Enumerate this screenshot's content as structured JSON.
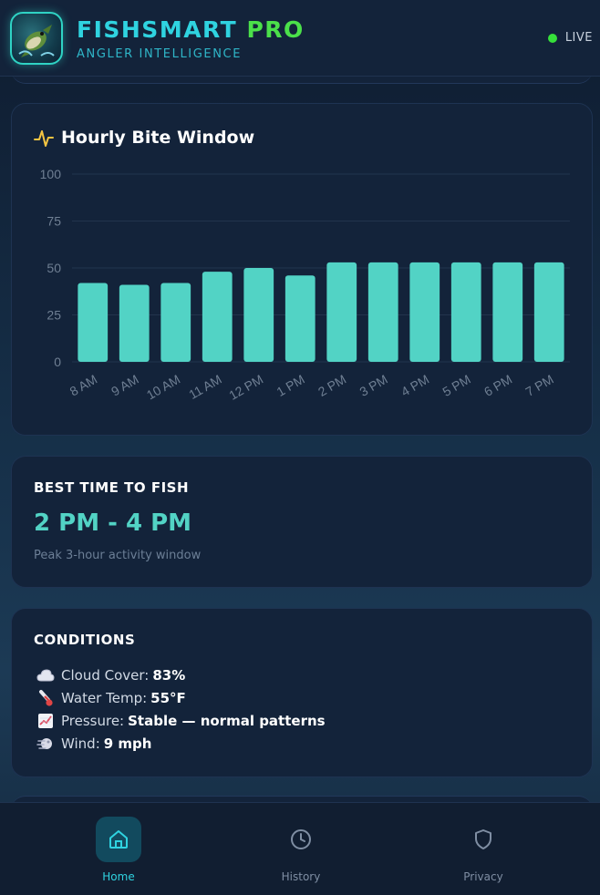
{
  "header": {
    "title_part1": "FISHSMART",
    "title_part2": "PRO",
    "subtitle": "ANGLER INTELLIGENCE",
    "status_label": "LIVE"
  },
  "chart_section": {
    "title": "Hourly Bite Window"
  },
  "chart_data": {
    "type": "bar",
    "title": "Hourly Bite Window",
    "categories": [
      "8 AM",
      "9 AM",
      "10 AM",
      "11 AM",
      "12 PM",
      "1 PM",
      "2 PM",
      "3 PM",
      "4 PM",
      "5 PM",
      "6 PM",
      "7 PM"
    ],
    "values": [
      42,
      41,
      42,
      48,
      50,
      46,
      53,
      53,
      53,
      53,
      53,
      53
    ],
    "ylim": [
      0,
      100
    ],
    "yticks": [
      0,
      25,
      50,
      75,
      100
    ],
    "bar_color": "#52d3c5",
    "grid": true
  },
  "best_time": {
    "heading": "BEST TIME TO FISH",
    "value": "2 PM - 4 PM",
    "note": "Peak 3-hour activity window"
  },
  "conditions": {
    "heading": "CONDITIONS",
    "items": [
      {
        "icon": "cloud-icon",
        "label": "Cloud Cover:",
        "value": "83%"
      },
      {
        "icon": "thermometer-icon",
        "label": "Water Temp:",
        "value": "55°F"
      },
      {
        "icon": "chart-up-icon",
        "label": "Pressure:",
        "value": "Stable — normal patterns"
      },
      {
        "icon": "wind-icon",
        "label": "Wind:",
        "value": "9 mph"
      }
    ]
  },
  "nav": {
    "items": [
      {
        "label": "Home",
        "icon": "home-icon",
        "active": true
      },
      {
        "label": "History",
        "icon": "clock-icon",
        "active": false
      },
      {
        "label": "Privacy",
        "icon": "shield-icon",
        "active": false
      }
    ]
  },
  "colors": {
    "accent": "#2fd3e0",
    "accent_green": "#4be04a",
    "bar": "#52d3c5",
    "live": "#36e03a"
  }
}
